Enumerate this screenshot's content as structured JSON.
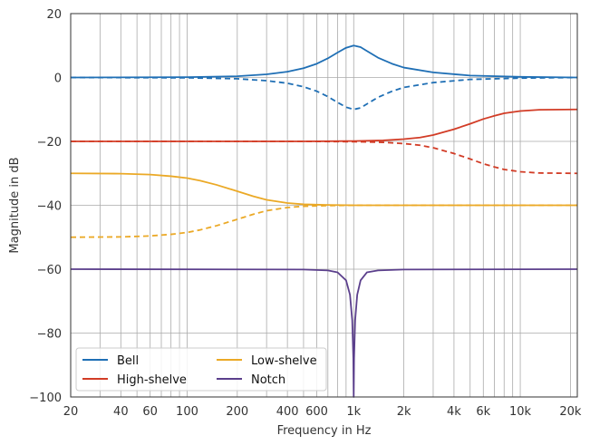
{
  "chart_data": {
    "type": "line",
    "title": "",
    "xlabel": "Frequency in Hz",
    "ylabel": "Magnitude in dB",
    "xscale": "log",
    "xlim": [
      20,
      22000
    ],
    "ylim": [
      -100,
      20
    ],
    "grid": true,
    "legend_position": "lower-left",
    "x_ticks": [
      20,
      40,
      60,
      100,
      200,
      400,
      600,
      1000,
      2000,
      4000,
      6000,
      10000,
      20000
    ],
    "x_tick_labels": [
      "20",
      "40",
      "60",
      "100",
      "200",
      "400",
      "600",
      "1k",
      "2k",
      "4k",
      "6k",
      "10k",
      "20k"
    ],
    "y_ticks": [
      -100,
      -80,
      -60,
      -40,
      -20,
      0,
      20
    ],
    "y_tick_labels": [
      "−100",
      "−80",
      "−60",
      "−40",
      "−20",
      "0",
      "20"
    ],
    "legend": [
      {
        "label": "Bell",
        "color": "#1f6fb5"
      },
      {
        "label": "High-shelve",
        "color": "#d23c26"
      },
      {
        "label": "Low-shelve",
        "color": "#eba926"
      },
      {
        "label": "Notch",
        "color": "#5b3f8c"
      }
    ],
    "series": [
      {
        "name": "Bell",
        "style": "solid",
        "color": "#1f6fb5",
        "x": [
          20,
          100,
          200,
          300,
          400,
          500,
          600,
          700,
          800,
          900,
          1000,
          1100,
          1200,
          1400,
          1700,
          2000,
          3000,
          5000,
          10000,
          22000
        ],
        "y": [
          0,
          0.1,
          0.4,
          1.0,
          1.8,
          2.9,
          4.3,
          6.0,
          7.8,
          9.3,
          10,
          9.5,
          8.3,
          6.2,
          4.3,
          3.1,
          1.6,
          0.6,
          0.2,
          0
        ]
      },
      {
        "name": "",
        "style": "dashed",
        "color": "#1f6fb5",
        "x": [
          20,
          100,
          200,
          300,
          400,
          500,
          600,
          700,
          800,
          900,
          1000,
          1100,
          1200,
          1400,
          1700,
          2000,
          3000,
          5000,
          10000,
          22000
        ],
        "y": [
          0,
          -0.1,
          -0.4,
          -1.0,
          -1.8,
          -2.9,
          -4.3,
          -6.0,
          -7.8,
          -9.3,
          -10,
          -9.5,
          -8.3,
          -6.2,
          -4.3,
          -3.1,
          -1.6,
          -0.6,
          -0.2,
          0
        ]
      },
      {
        "name": "High-shelve",
        "style": "solid",
        "color": "#d23c26",
        "x": [
          20,
          500,
          1000,
          1500,
          2000,
          2500,
          3000,
          4000,
          5000,
          6000,
          7000,
          8000,
          10000,
          13000,
          22000
        ],
        "y": [
          -20,
          -20,
          -19.9,
          -19.7,
          -19.3,
          -18.8,
          -18.0,
          -16.2,
          -14.5,
          -13.0,
          -12.0,
          -11.2,
          -10.5,
          -10.1,
          -10
        ]
      },
      {
        "name": "",
        "style": "dashed",
        "color": "#d23c26",
        "x": [
          20,
          500,
          1000,
          1500,
          2000,
          2500,
          3000,
          4000,
          5000,
          6000,
          7000,
          8000,
          10000,
          13000,
          22000
        ],
        "y": [
          -20,
          -20,
          -20.1,
          -20.3,
          -20.7,
          -21.2,
          -22.0,
          -23.8,
          -25.5,
          -27.0,
          -28.0,
          -28.8,
          -29.5,
          -29.9,
          -30
        ]
      },
      {
        "name": "Low-shelve",
        "style": "solid",
        "color": "#eba926",
        "x": [
          20,
          40,
          60,
          80,
          100,
          120,
          150,
          200,
          250,
          300,
          400,
          500,
          700,
          1000,
          22000
        ],
        "y": [
          -30,
          -30.1,
          -30.4,
          -30.9,
          -31.5,
          -32.3,
          -33.6,
          -35.6,
          -37.2,
          -38.3,
          -39.3,
          -39.7,
          -39.9,
          -40,
          -40
        ]
      },
      {
        "name": "",
        "style": "dashed",
        "color": "#eba926",
        "x": [
          20,
          40,
          60,
          80,
          100,
          120,
          150,
          200,
          250,
          300,
          400,
          500,
          700,
          1000,
          22000
        ],
        "y": [
          -50,
          -49.9,
          -49.6,
          -49.1,
          -48.5,
          -47.7,
          -46.4,
          -44.4,
          -42.8,
          -41.7,
          -40.7,
          -40.3,
          -40.1,
          -40,
          -40
        ]
      },
      {
        "name": "Notch",
        "style": "solid",
        "color": "#5b3f8c",
        "x": [
          20,
          500,
          700,
          800,
          900,
          950,
          980,
          995,
          1000,
          1005,
          1020,
          1050,
          1100,
          1200,
          1400,
          2000,
          22000
        ],
        "y": [
          -60,
          -60.1,
          -60.4,
          -61.0,
          -63.5,
          -68,
          -76,
          -88,
          -100,
          -88,
          -76,
          -68,
          -63.5,
          -61.0,
          -60.4,
          -60.1,
          -60
        ]
      }
    ]
  }
}
